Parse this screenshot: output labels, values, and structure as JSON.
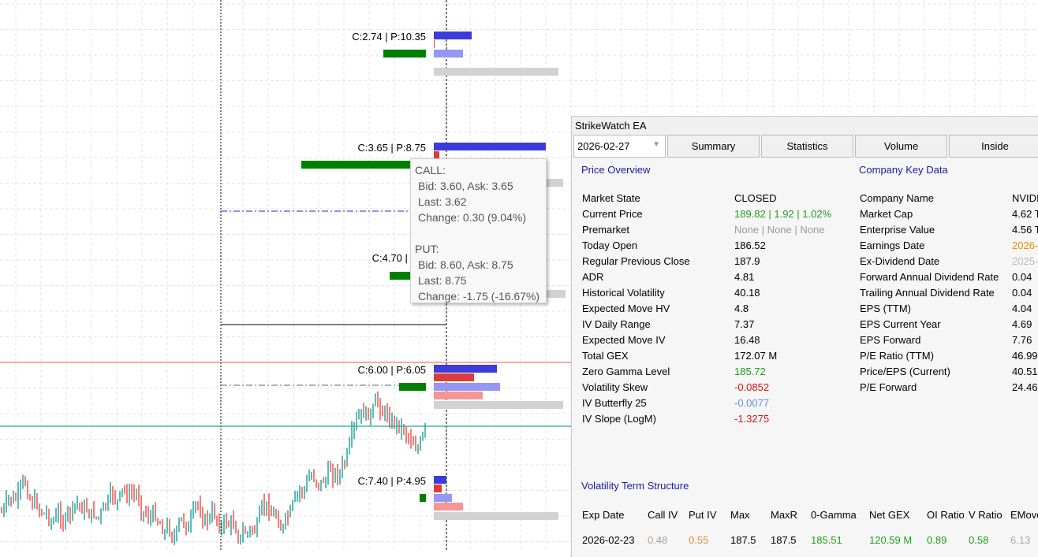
{
  "chart": {
    "strike_labels": [
      "C:2.74 | P:10.35",
      "C:3.65 | P:8.75",
      "C:4.70 | P:7",
      "C:6.00 | P:6.05",
      "C:7.40 | P:4.95"
    ],
    "colors": {
      "call_oi": "#3c3cdc",
      "put_oi": "#dc3c3c",
      "call_vol": "#9696f5",
      "put_vol": "#f59696",
      "total": "#d2d2d2",
      "net": "#008000",
      "up_candle": "#26a69a",
      "down_candle": "#ef5350"
    }
  },
  "tooltip": {
    "call_title": "CALL:",
    "call_bidask": "Bid: 3.60, Ask: 3.65",
    "call_last": "Last: 3.62",
    "call_change": "Change: 0.30 (9.04%)",
    "put_title": "PUT:",
    "put_bidask": "Bid: 8.60, Ask: 8.75",
    "put_last": "Last: 8.75",
    "put_change": "Change: -1.75 (-16.67%)"
  },
  "panel": {
    "title": "StrikeWatch EA",
    "date_select": "2026-02-27",
    "tabs": [
      "Summary",
      "Statistics",
      "Volume",
      "Inside"
    ],
    "price_overview_title": "Price Overview",
    "company_title": "Company Key Data",
    "price_overview": [
      {
        "label": "Market State",
        "value": "CLOSED",
        "color": "#000000"
      },
      {
        "label": "Current Price",
        "value": "189.82 | 1.92 | 1.02%",
        "color": "#1e9e1e"
      },
      {
        "label": "Premarket",
        "value": "None | None | None",
        "color": "#999999"
      },
      {
        "label": "Today Open",
        "value": "186.52",
        "color": "#000000"
      },
      {
        "label": "Regular Previous Close",
        "value": "187.9",
        "color": "#000000"
      },
      {
        "label": "ADR",
        "value": "4.81",
        "color": "#000000"
      },
      {
        "label": "Historical Volatility",
        "value": "40.18",
        "color": "#000000"
      },
      {
        "label": "Expected Move HV",
        "value": "4.8",
        "color": "#000000"
      },
      {
        "label": "IV Daily Range",
        "value": "7.37",
        "color": "#000000"
      },
      {
        "label": "Expected Move IV",
        "value": "16.48",
        "color": "#000000"
      },
      {
        "label": "Total GEX",
        "value": "172.07 M",
        "color": "#000000"
      },
      {
        "label": "Zero Gamma Level",
        "value": "185.72",
        "color": "#1e9e1e"
      },
      {
        "label": "Volatility Skew",
        "value": "-0.0852",
        "color": "#e01010"
      },
      {
        "label": "IV Butterfly 25",
        "value": "-0.0077",
        "color": "#6a8ae0"
      },
      {
        "label": "IV Slope (LogM)",
        "value": "-1.3275",
        "color": "#e01010"
      }
    ],
    "company": [
      {
        "label": "Company Name",
        "value": "NVIDI",
        "color": "#000000"
      },
      {
        "label": "Market Cap",
        "value": "4.62 T",
        "color": "#000000"
      },
      {
        "label": "Enterprise Value",
        "value": "4.56 T",
        "color": "#000000"
      },
      {
        "label": "Earnings Date",
        "value": "2026-",
        "color": "#f08c00"
      },
      {
        "label": "Ex-Dividend Date",
        "value": "2025-",
        "color": "#bbbbbb"
      },
      {
        "label": "Forward Annual Dividend Rate",
        "value": "0.04",
        "color": "#000000"
      },
      {
        "label": "Trailing Annual Dividend Rate",
        "value": "0.04",
        "color": "#000000"
      },
      {
        "label": "EPS (TTM)",
        "value": "4.04",
        "color": "#000000"
      },
      {
        "label": "EPS Current Year",
        "value": "4.69",
        "color": "#000000"
      },
      {
        "label": "EPS Forward",
        "value": "7.76",
        "color": "#000000"
      },
      {
        "label": "P/E Ratio (TTM)",
        "value": "46.99",
        "color": "#000000"
      },
      {
        "label": "Price/EPS (Current)",
        "value": "40.51",
        "color": "#000000"
      },
      {
        "label": "P/E Forward",
        "value": "24.46",
        "color": "#000000"
      }
    ],
    "term_title": "Volatility Term Structure",
    "term_headers": [
      "Exp Date",
      "Call IV",
      "Put IV",
      "Max",
      "MaxR",
      "0-Gamma",
      "Net GEX",
      "OI Ratio",
      "V Ratio",
      "EMove"
    ],
    "term_rows": [
      [
        {
          "v": "2026-02-23",
          "c": "#000000"
        },
        {
          "v": "0.48",
          "c": "#b0a090"
        },
        {
          "v": "0.55",
          "c": "#e09040"
        },
        {
          "v": "187.5",
          "c": "#000000"
        },
        {
          "v": "187.5",
          "c": "#000000"
        },
        {
          "v": "185.51",
          "c": "#1e9e1e"
        },
        {
          "v": "120.59 M",
          "c": "#1e9e1e"
        },
        {
          "v": "0.89",
          "c": "#1e9e1e"
        },
        {
          "v": "0.58",
          "c": "#1e9e1e"
        },
        {
          "v": "6.13",
          "c": "#aaaaaa"
        }
      ]
    ]
  }
}
